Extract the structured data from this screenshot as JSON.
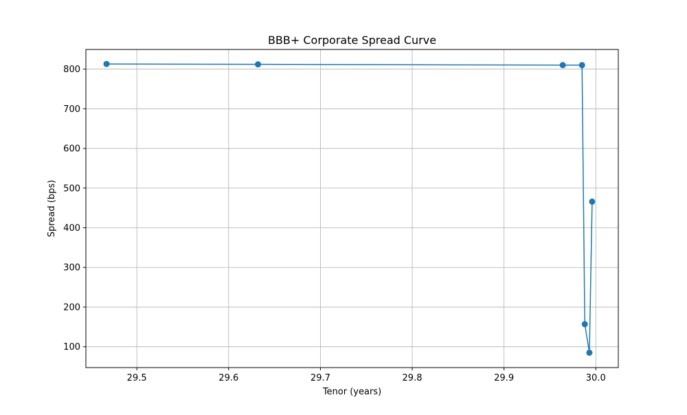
{
  "chart_data": {
    "type": "line",
    "title": "BBB+ Corporate Spread Curve",
    "xlabel": "Tenor (years)",
    "ylabel": "Spread (bps)",
    "xlim": [
      29.4445,
      30.0245
    ],
    "ylim": [
      47.5,
      849.5
    ],
    "xticks": [
      29.5,
      29.6,
      29.7,
      29.8,
      29.9,
      30.0
    ],
    "xtick_labels": [
      "29.5",
      "29.6",
      "29.7",
      "29.8",
      "29.9",
      "30.0"
    ],
    "yticks": [
      100,
      200,
      300,
      400,
      500,
      600,
      700,
      800
    ],
    "ytick_labels": [
      "100",
      "200",
      "300",
      "400",
      "500",
      "600",
      "700",
      "800"
    ],
    "grid": true,
    "marker": "circle",
    "series": [
      {
        "color": "#1f77b4",
        "x": [
          29.467,
          29.632,
          29.964,
          29.985,
          29.988,
          29.993,
          29.996
        ],
        "y": [
          813,
          812,
          810,
          810,
          157,
          85,
          466
        ]
      }
    ]
  }
}
